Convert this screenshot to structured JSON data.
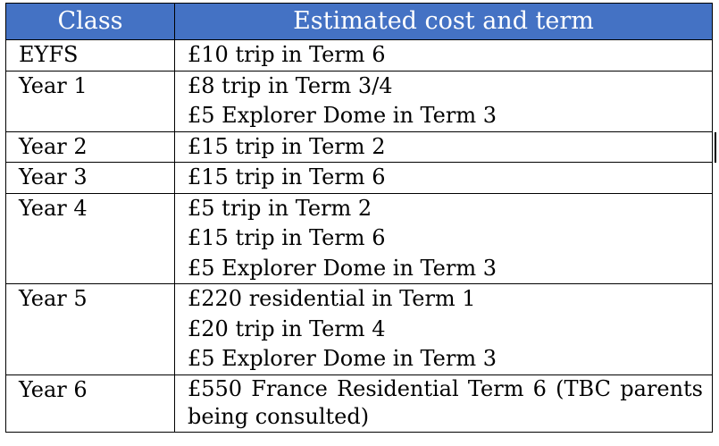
{
  "table": {
    "headers": [
      "Class",
      "Estimated cost and term"
    ],
    "rows": [
      {
        "class": "EYFS",
        "lines": [
          "£10 trip in Term 6"
        ]
      },
      {
        "class": "Year 1",
        "lines": [
          "£8 trip in Term 3/4",
          "£5 Explorer Dome in Term 3"
        ]
      },
      {
        "class": "Year 2",
        "lines": [
          "£15 trip in Term 2"
        ]
      },
      {
        "class": "Year 3",
        "lines": [
          "£15 trip in Term 6"
        ]
      },
      {
        "class": "Year 4",
        "lines": [
          "£5 trip in Term 2",
          "£15 trip in Term 6",
          "£5 Explorer Dome in Term 3"
        ]
      },
      {
        "class": "Year 5",
        "lines": [
          "£220 residential in Term 1",
          "£20 trip in Term 4",
          "£5 Explorer Dome in Term 3"
        ]
      },
      {
        "class": "Year 6",
        "lines": [
          "£550 France Residential Term 6 (TBC parents being consulted)"
        ]
      }
    ]
  },
  "colors": {
    "header_bg": "#4472c4",
    "header_text": "#ffffff",
    "border": "#000000"
  }
}
